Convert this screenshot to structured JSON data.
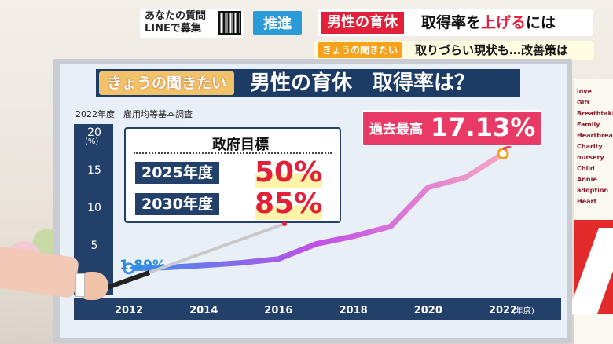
{
  "ticker": {
    "qr_line1": "あなたの質問",
    "qr_line2": "LINEで募集",
    "category": "推進",
    "headline_red": "男性の育休",
    "headline_mid": "取得率を",
    "headline_red2": "上げる",
    "headline_end": "には",
    "sub_tag": "きょうの聞きたい",
    "sub_text": "取りづらい現状も…改善策は"
  },
  "board": {
    "title_tag": "きょうの聞きたい",
    "title": "男性の育休　取得率は？",
    "source": "2022年度　雇用均等基本調査",
    "y_unit": "(%)",
    "x_unit": "(年度)",
    "first_value_label": "1.89%",
    "record_label": "過去最高",
    "record_value": "17.13%",
    "goal": {
      "title": "政府目標",
      "items": [
        {
          "year": "2025年度",
          "value": "50%"
        },
        {
          "year": "2030年度",
          "value": "85%"
        }
      ]
    }
  },
  "colors": {
    "navy": "#23406a",
    "line_start": "#3a8ff0",
    "line_mid": "#c04fe6",
    "line_end": "#f6a7c3",
    "accent_red": "#e2203a",
    "record_pink": "#e93a66",
    "marker": "#f7a21b"
  },
  "chart_data": {
    "type": "line",
    "title": "男性の育休　取得率は？",
    "xlabel": "(年度)",
    "ylabel": "(%)",
    "x": [
      2012,
      2013,
      2014,
      2015,
      2016,
      2017,
      2018,
      2019,
      2020,
      2021,
      2022
    ],
    "series": [
      {
        "values": [
          1.89,
          2.03,
          2.3,
          2.65,
          3.16,
          5.14,
          6.16,
          7.48,
          12.65,
          13.97,
          17.13
        ]
      }
    ],
    "xticks": [
      2012,
      2014,
      2016,
      2018,
      2020,
      2022
    ],
    "yticks": [
      5,
      10,
      15,
      20
    ],
    "xlim": [
      2012,
      2022
    ],
    "ylim": [
      0,
      20
    ],
    "annotations": [
      "1.89%",
      "過去最高 17.13%"
    ],
    "grid": false
  },
  "right_panel_words": [
    "love",
    "Gift",
    "Breathtaking",
    "Family",
    "Heartbreaking",
    "Charity",
    "nursery",
    "Child",
    "Annie",
    "adoption",
    "Heart"
  ]
}
